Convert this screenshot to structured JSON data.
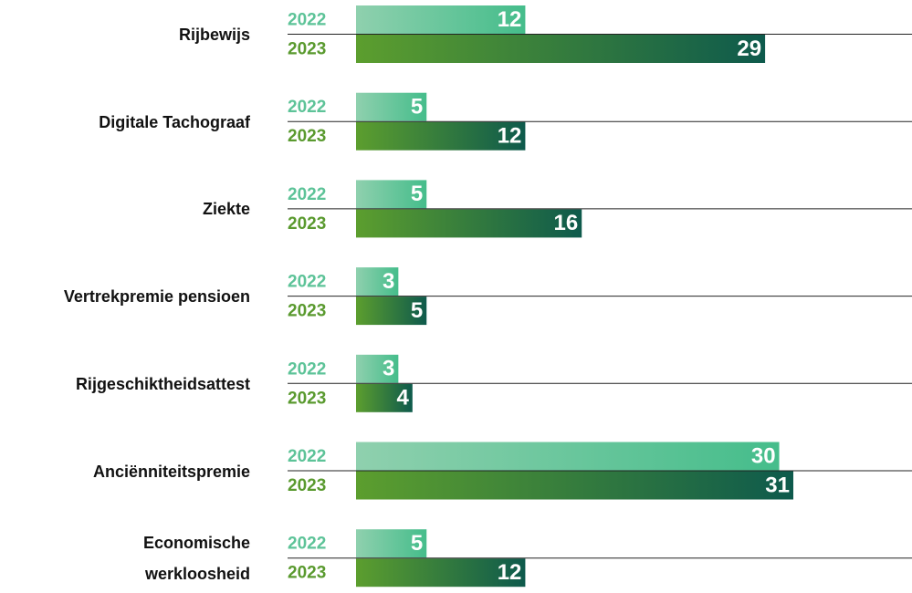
{
  "chart_data": {
    "type": "bar",
    "orientation": "horizontal",
    "categories": [
      "Rijbewijs",
      "Digitale Tachograaf",
      "Ziekte",
      "Vertrekpremie pensioen",
      "Rijgeschiktheidsattest",
      "Anciënniteitspremie",
      "Economische werkloosheid"
    ],
    "series": [
      {
        "name": "2022",
        "color": "#5dc398",
        "values": [
          12,
          5,
          5,
          3,
          3,
          30,
          5
        ]
      },
      {
        "name": "2023",
        "color": "#5a9a2f",
        "values": [
          29,
          12,
          16,
          5,
          4,
          31,
          12
        ]
      }
    ]
  }
}
